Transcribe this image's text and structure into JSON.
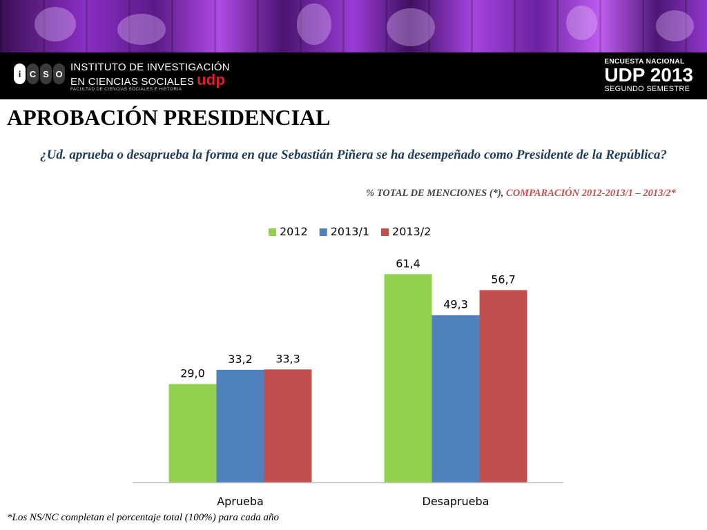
{
  "header": {
    "logo_letters": [
      "i",
      "C",
      "S",
      "O"
    ],
    "institute_line1": "INSTITUTO DE INVESTIGACIÓN",
    "institute_line2": "EN CIENCIAS SOCIALES",
    "university": "udp",
    "faculty": "FACULTAD DE CIENCIAS SOCIALES E HISTORIA",
    "survey_line1": "ENCUESTA NACIONAL",
    "survey_line2": "UDP 2013",
    "survey_line3": "SEGUNDO SEMESTRE"
  },
  "page_title": "APROBACIÓN PRESIDENCIAL",
  "question": "¿Ud. aprueba o desaprueba  la forma en que Sebastián Piñera  se ha desempeñado como Presidente de la República?",
  "note": {
    "prefix": "% TOTAL DE MENCIONES (*), ",
    "highlight": "COMPARACIÓN 2012-2013/1 – 2013/2*"
  },
  "footnote": "*Los NS/NC completan el porcentaje total  (100%) para cada año",
  "colors": {
    "series_2012": "#92d050",
    "series_2013_1": "#4f81bd",
    "series_2013_2": "#c0504d",
    "accent_red": "#c0504d"
  },
  "chart_data": {
    "type": "bar",
    "categories": [
      "Aprueba",
      "Desaprueba"
    ],
    "series": [
      {
        "name": "2012",
        "values": [
          29.0,
          61.4
        ],
        "labels": [
          "29,0",
          "61,4"
        ],
        "color": "#92d050"
      },
      {
        "name": "2013/1",
        "values": [
          33.2,
          49.3
        ],
        "labels": [
          "33,2",
          "49,3"
        ],
        "color": "#4f81bd"
      },
      {
        "name": "2013/2",
        "values": [
          33.3,
          56.7
        ],
        "labels": [
          "33,3",
          "56,7"
        ],
        "color": "#c0504d"
      }
    ],
    "ylim": [
      0,
      70
    ],
    "grid": false,
    "legend_position": "top-center",
    "title": "",
    "xlabel": "",
    "ylabel": ""
  }
}
